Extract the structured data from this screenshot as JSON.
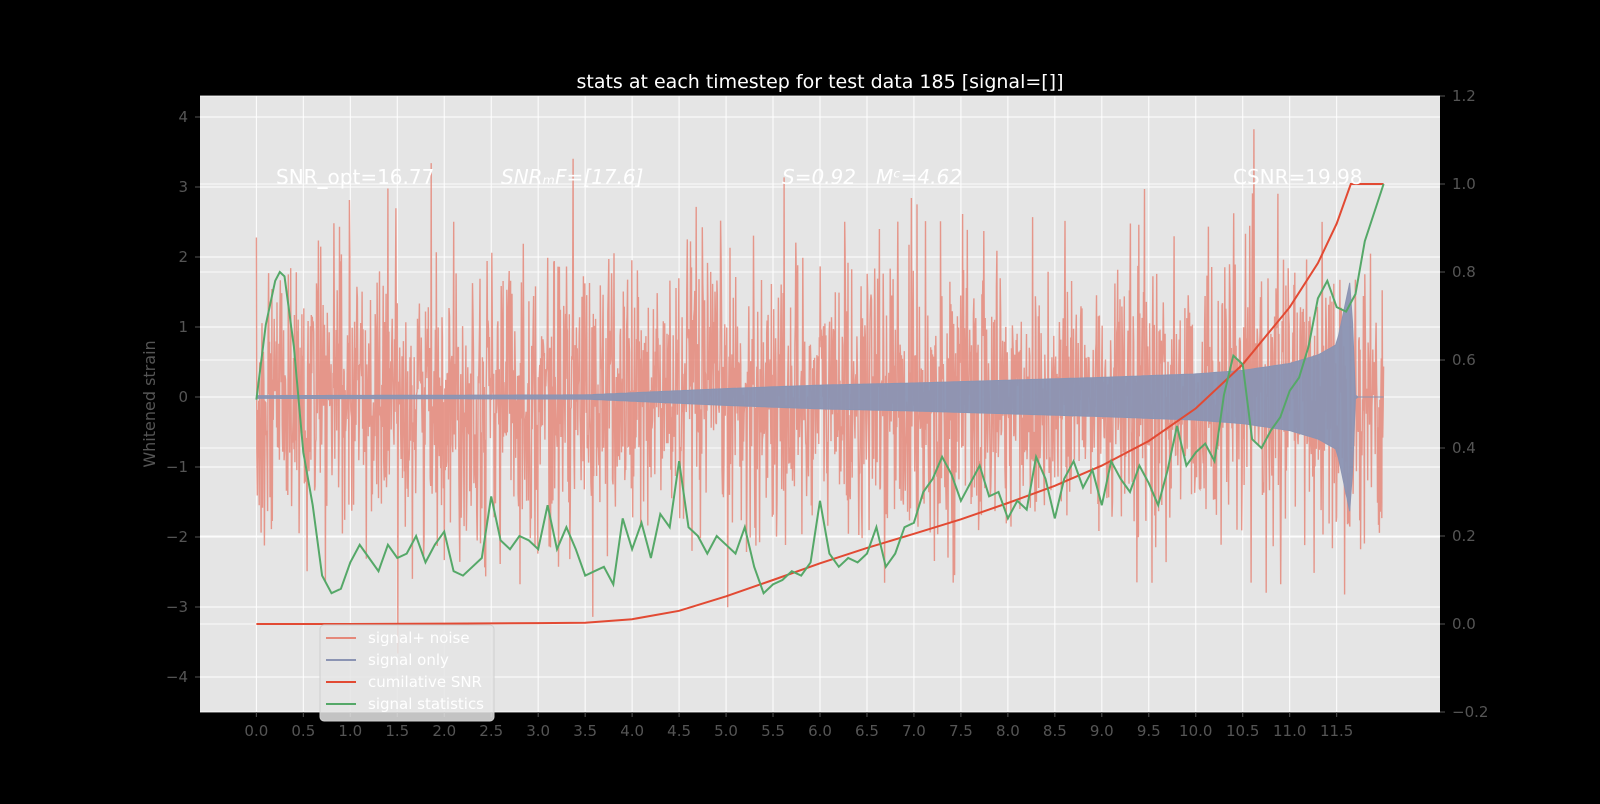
{
  "chart_data": {
    "type": "line",
    "title": "stats at each timestep for test data 185 [signal=[]]",
    "ylabel": "Whitened strain",
    "xlabel": "",
    "x_ticks": [
      "0.0",
      "0.5",
      "1.0",
      "1.5",
      "2.0",
      "2.5",
      "3.0",
      "3.5",
      "4.0",
      "4.5",
      "5.0",
      "5.5",
      "6.0",
      "6.5",
      "7.0",
      "7.5",
      "8.0",
      "8.5",
      "9.0",
      "9.5",
      "10.0",
      "10.5",
      "11.0",
      "11.5"
    ],
    "y_left_ticks": [
      "4",
      "3",
      "2",
      "1",
      "0",
      "−1",
      "−2",
      "−3",
      "−4"
    ],
    "y_right_ticks": [
      "1.2",
      "1.0",
      "0.8",
      "0.6",
      "0.4",
      "0.2",
      "0.0",
      "−0.2"
    ],
    "xlim": [
      -0.6,
      12.6
    ],
    "ylim_left": [
      -4.5,
      4.3
    ],
    "ylim_right": [
      -0.2,
      1.2
    ],
    "grid": true,
    "legend_position": "lower-left",
    "annotations": {
      "snr_opt": "SNR_opt=16.77",
      "snr_mf": "SNRₘF=[17.6]",
      "spin": "S=0.92",
      "chirp_mass": "Mᶜ=4.62",
      "csnr": "CSNR=19.98"
    },
    "series": [
      {
        "name": "signal+ noise",
        "axis": "left",
        "color": "#e5887a",
        "description_points": "dense noisy strain",
        "noise_envelope_sigma": 1.0,
        "x_range": [
          0.0,
          12.0
        ]
      },
      {
        "name": "signal only",
        "axis": "left",
        "color": "#8b94b3",
        "x_range": [
          0.0,
          12.0
        ],
        "amplitude_points": {
          "x": [
            0.0,
            3.5,
            4.0,
            5.0,
            6.0,
            7.0,
            8.0,
            9.0,
            10.0,
            10.5,
            11.0,
            11.3,
            11.5,
            11.65,
            11.7,
            12.0
          ],
          "amp": [
            0.02,
            0.03,
            0.06,
            0.12,
            0.17,
            0.2,
            0.24,
            0.28,
            0.33,
            0.38,
            0.48,
            0.6,
            0.75,
            1.7,
            0.0,
            0.0
          ]
        }
      },
      {
        "name": "cumilative SNR",
        "axis": "right",
        "color": "#e24a33",
        "x": [
          0.0,
          1.0,
          2.0,
          3.0,
          3.5,
          4.0,
          4.5,
          5.0,
          5.5,
          6.0,
          6.5,
          7.0,
          7.5,
          8.0,
          8.5,
          9.0,
          9.5,
          10.0,
          10.5,
          11.0,
          11.3,
          11.5,
          11.65,
          11.7,
          12.0
        ],
        "y": [
          0.0,
          0.0,
          0.001,
          0.002,
          0.003,
          0.011,
          0.03,
          0.063,
          0.1,
          0.138,
          0.173,
          0.205,
          0.238,
          0.275,
          0.314,
          0.36,
          0.416,
          0.49,
          0.59,
          0.72,
          0.82,
          0.91,
          1.0,
          1.0,
          1.0
        ]
      },
      {
        "name": "signal statistics",
        "axis": "right",
        "color": "#55a868",
        "x": [
          0.0,
          0.1,
          0.2,
          0.25,
          0.3,
          0.4,
          0.5,
          0.6,
          0.7,
          0.8,
          0.9,
          1.0,
          1.1,
          1.2,
          1.3,
          1.4,
          1.5,
          1.6,
          1.7,
          1.8,
          1.9,
          2.0,
          2.1,
          2.2,
          2.3,
          2.4,
          2.5,
          2.6,
          2.7,
          2.8,
          2.9,
          3.0,
          3.1,
          3.2,
          3.3,
          3.4,
          3.5,
          3.6,
          3.7,
          3.8,
          3.9,
          4.0,
          4.1,
          4.2,
          4.3,
          4.4,
          4.5,
          4.6,
          4.7,
          4.8,
          4.9,
          5.0,
          5.1,
          5.2,
          5.3,
          5.4,
          5.5,
          5.6,
          5.7,
          5.8,
          5.9,
          6.0,
          6.1,
          6.2,
          6.3,
          6.4,
          6.5,
          6.6,
          6.7,
          6.8,
          6.9,
          7.0,
          7.1,
          7.2,
          7.3,
          7.4,
          7.5,
          7.6,
          7.7,
          7.8,
          7.9,
          8.0,
          8.1,
          8.2,
          8.3,
          8.4,
          8.5,
          8.6,
          8.7,
          8.8,
          8.9,
          9.0,
          9.1,
          9.2,
          9.3,
          9.4,
          9.5,
          9.6,
          9.7,
          9.8,
          9.9,
          10.0,
          10.1,
          10.2,
          10.3,
          10.4,
          10.5,
          10.6,
          10.7,
          10.8,
          10.9,
          11.0,
          11.1,
          11.2,
          11.3,
          11.4,
          11.5,
          11.6,
          11.7,
          11.8,
          12.0
        ],
        "y": [
          0.51,
          0.68,
          0.78,
          0.8,
          0.79,
          0.63,
          0.39,
          0.27,
          0.11,
          0.07,
          0.08,
          0.14,
          0.18,
          0.15,
          0.12,
          0.18,
          0.15,
          0.16,
          0.2,
          0.14,
          0.18,
          0.21,
          0.12,
          0.11,
          0.13,
          0.15,
          0.29,
          0.19,
          0.17,
          0.2,
          0.19,
          0.17,
          0.27,
          0.17,
          0.22,
          0.17,
          0.11,
          0.12,
          0.13,
          0.09,
          0.24,
          0.17,
          0.23,
          0.15,
          0.25,
          0.22,
          0.37,
          0.22,
          0.2,
          0.16,
          0.2,
          0.18,
          0.16,
          0.22,
          0.13,
          0.07,
          0.09,
          0.1,
          0.12,
          0.11,
          0.14,
          0.28,
          0.16,
          0.13,
          0.15,
          0.14,
          0.16,
          0.22,
          0.13,
          0.16,
          0.22,
          0.23,
          0.3,
          0.33,
          0.38,
          0.34,
          0.28,
          0.32,
          0.36,
          0.29,
          0.3,
          0.24,
          0.28,
          0.26,
          0.38,
          0.33,
          0.24,
          0.33,
          0.37,
          0.31,
          0.35,
          0.27,
          0.37,
          0.33,
          0.3,
          0.36,
          0.32,
          0.27,
          0.35,
          0.45,
          0.36,
          0.39,
          0.41,
          0.37,
          0.52,
          0.61,
          0.59,
          0.42,
          0.4,
          0.44,
          0.47,
          0.53,
          0.56,
          0.63,
          0.74,
          0.78,
          0.72,
          0.71,
          0.75,
          0.87,
          1.0
        ]
      }
    ]
  },
  "legend": [
    {
      "label": "signal+ noise",
      "color": "#e5887a"
    },
    {
      "label": "signal only",
      "color": "#8b94b3"
    },
    {
      "label": "cumilative SNR",
      "color": "#e24a33"
    },
    {
      "label": "signal statistics",
      "color": "#55a868"
    }
  ]
}
